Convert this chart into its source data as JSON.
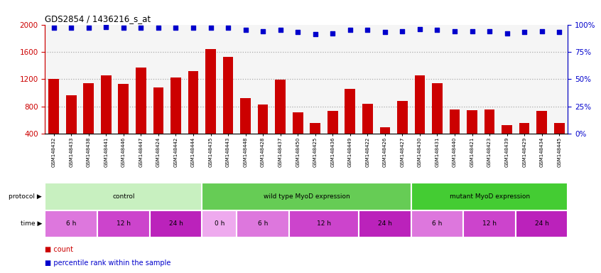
{
  "title": "GDS2854 / 1436216_s_at",
  "samples": [
    "GSM148432",
    "GSM148433",
    "GSM148438",
    "GSM148441",
    "GSM148446",
    "GSM148447",
    "GSM148424",
    "GSM148442",
    "GSM148444",
    "GSM148435",
    "GSM148443",
    "GSM148448",
    "GSM148428",
    "GSM148437",
    "GSM148450",
    "GSM148425",
    "GSM148436",
    "GSM148449",
    "GSM148422",
    "GSM148426",
    "GSM148427",
    "GSM148430",
    "GSM148431",
    "GSM148440",
    "GSM148421",
    "GSM148423",
    "GSM148439",
    "GSM148429",
    "GSM148434",
    "GSM148445"
  ],
  "counts": [
    1200,
    960,
    1140,
    1260,
    1130,
    1370,
    1080,
    1220,
    1320,
    1640,
    1530,
    920,
    830,
    1190,
    710,
    560,
    730,
    1060,
    835,
    500,
    880,
    1260,
    1140,
    760,
    750,
    760,
    530,
    560,
    730,
    560
  ],
  "percentiles": [
    97,
    97,
    97,
    98,
    97,
    97,
    97,
    97,
    97,
    97,
    97,
    95,
    94,
    95,
    93,
    91,
    92,
    95,
    95,
    93,
    94,
    96,
    95,
    94,
    94,
    94,
    92,
    93,
    94,
    93
  ],
  "ylim_left": [
    400,
    2000
  ],
  "ylim_right": [
    0,
    100
  ],
  "yticks_left": [
    400,
    800,
    1200,
    1600,
    2000
  ],
  "yticks_right": [
    0,
    25,
    50,
    75,
    100
  ],
  "bar_color": "#cc0000",
  "dot_color": "#0000cc",
  "protocol_groups": [
    {
      "label": "control",
      "start": 0,
      "end": 9,
      "color": "#c8f0c0"
    },
    {
      "label": "wild type MyoD expression",
      "start": 9,
      "end": 21,
      "color": "#66cc55"
    },
    {
      "label": "mutant MyoD expression",
      "start": 21,
      "end": 30,
      "color": "#44cc33"
    }
  ],
  "time_groups": [
    {
      "label": "6 h",
      "start": 0,
      "end": 3,
      "color": "#dd77dd"
    },
    {
      "label": "12 h",
      "start": 3,
      "end": 6,
      "color": "#cc44cc"
    },
    {
      "label": "24 h",
      "start": 6,
      "end": 9,
      "color": "#bb22bb"
    },
    {
      "label": "0 h",
      "start": 9,
      "end": 11,
      "color": "#eeaaee"
    },
    {
      "label": "6 h",
      "start": 11,
      "end": 14,
      "color": "#dd77dd"
    },
    {
      "label": "12 h",
      "start": 14,
      "end": 18,
      "color": "#cc44cc"
    },
    {
      "label": "24 h",
      "start": 18,
      "end": 21,
      "color": "#bb22bb"
    },
    {
      "label": "6 h",
      "start": 21,
      "end": 24,
      "color": "#dd77dd"
    },
    {
      "label": "12 h",
      "start": 24,
      "end": 27,
      "color": "#cc44cc"
    },
    {
      "label": "24 h",
      "start": 27,
      "end": 30,
      "color": "#bb22bb"
    }
  ],
  "dotted_grid_values": [
    800,
    1200,
    1600
  ],
  "bg_color": "#f5f5f5",
  "grid_color": "#aaaaaa",
  "bar_color_legend": "#cc0000",
  "dot_color_legend": "#0000cc",
  "legend_count": "count",
  "legend_pct": "percentile rank within the sample"
}
